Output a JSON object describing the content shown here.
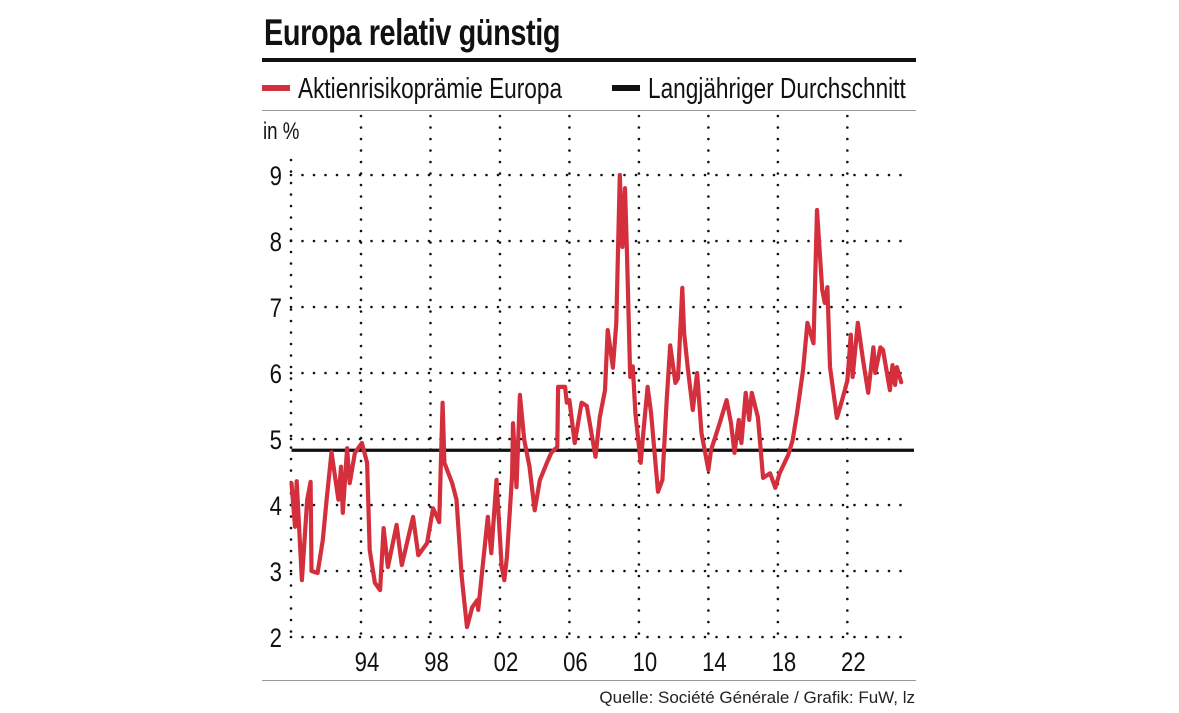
{
  "chart_data": {
    "type": "line",
    "title": "Europa relativ günstig",
    "ylabel": "in %",
    "xlabel": "",
    "ylim": [
      2,
      9
    ],
    "xlim": [
      1990,
      2025.8
    ],
    "yticks": [
      "2",
      "3",
      "4",
      "5",
      "6",
      "7",
      "8",
      "9"
    ],
    "xticks": [
      {
        "year": 1994,
        "label": "94"
      },
      {
        "year": 1998,
        "label": "98"
      },
      {
        "year": 2002,
        "label": "02"
      },
      {
        "year": 2006,
        "label": "06"
      },
      {
        "year": 2010,
        "label": "10"
      },
      {
        "year": 2014,
        "label": "14"
      },
      {
        "year": 2018,
        "label": "18"
      },
      {
        "year": 2022,
        "label": "22"
      }
    ],
    "grid": "dotted",
    "legend_position": "top",
    "series": [
      {
        "name": "Aktienrisikoprämie Europa",
        "color": "#d42f3c",
        "x": [
          1990.0,
          1990.2,
          1990.3,
          1990.6,
          1990.9,
          1991.1,
          1991.15,
          1991.5,
          1991.8,
          1992.0,
          1992.3,
          1992.7,
          1992.85,
          1992.95,
          1993.2,
          1993.35,
          1993.65,
          1994.05,
          1994.35,
          1994.5,
          1994.8,
          1995.1,
          1995.3,
          1995.55,
          1996.05,
          1996.35,
          1997.0,
          1997.3,
          1997.8,
          1998.15,
          1998.5,
          1998.7,
          1998.8,
          1999.25,
          1999.5,
          1999.8,
          2000.1,
          2000.4,
          2000.7,
          2000.75,
          2001.0,
          2001.3,
          2001.5,
          2001.8,
          2002.1,
          2002.25,
          2002.4,
          2002.7,
          2002.75,
          2002.95,
          2003.15,
          2003.4,
          2003.7,
          2004.0,
          2004.3,
          2004.7,
          2004.95,
          2005.3,
          2005.35,
          2005.75,
          2005.85,
          2006.0,
          2006.3,
          2006.7,
          2007.0,
          2007.5,
          2007.75,
          2008.05,
          2008.2,
          2008.5,
          2008.7,
          2008.9,
          2009.05,
          2009.2,
          2009.3,
          2009.5,
          2009.65,
          2009.8,
          2010.1,
          2010.25,
          2010.5,
          2010.7,
          2011.1,
          2011.35,
          2011.6,
          2011.8,
          2012.1,
          2012.25,
          2012.5,
          2012.6,
          2012.8,
          2013.1,
          2013.35,
          2013.6,
          2014.0,
          2014.15,
          2014.65,
          2015.05,
          2015.3,
          2015.5,
          2015.75,
          2015.9,
          2016.15,
          2016.35,
          2016.5,
          2016.85,
          2017.15,
          2017.55,
          2017.85,
          2018.1,
          2018.6,
          2018.85,
          2019.1,
          2019.45,
          2019.7,
          2020.05,
          2020.25,
          2020.55,
          2020.7,
          2020.85,
          2021.0,
          2021.4,
          2021.7,
          2021.85,
          2022.0,
          2022.2,
          2022.3,
          2022.6,
          2022.9,
          2023.2,
          2023.5,
          2023.6,
          2023.9,
          2024.05,
          2024.45,
          2024.6,
          2024.75,
          2024.85,
          2025.1
        ],
        "y": [
          4.33,
          3.67,
          4.36,
          2.86,
          4.08,
          4.35,
          3.0,
          2.97,
          3.47,
          4.03,
          4.8,
          4.08,
          4.58,
          3.88,
          4.86,
          4.33,
          4.79,
          4.94,
          4.64,
          3.32,
          2.82,
          2.71,
          3.65,
          3.06,
          3.7,
          3.09,
          3.82,
          3.24,
          3.42,
          3.95,
          3.74,
          5.55,
          4.64,
          4.33,
          4.08,
          2.91,
          2.15,
          2.45,
          2.56,
          2.41,
          3.06,
          3.82,
          3.27,
          4.38,
          3.06,
          2.86,
          3.21,
          4.45,
          5.24,
          4.27,
          5.67,
          4.98,
          4.58,
          3.92,
          4.38,
          4.64,
          4.79,
          4.88,
          5.79,
          5.79,
          5.55,
          5.59,
          4.94,
          5.55,
          5.5,
          4.73,
          5.33,
          5.74,
          6.65,
          6.08,
          6.76,
          9.0,
          7.91,
          8.8,
          7.91,
          5.94,
          6.1,
          5.39,
          4.64,
          5.09,
          5.79,
          5.39,
          4.2,
          4.38,
          5.59,
          6.42,
          5.85,
          5.92,
          7.29,
          6.61,
          6.1,
          5.44,
          6.0,
          5.09,
          4.53,
          4.83,
          5.24,
          5.59,
          5.24,
          4.79,
          5.29,
          4.94,
          5.7,
          5.29,
          5.7,
          5.33,
          4.41,
          4.48,
          4.26,
          4.48,
          4.76,
          4.98,
          5.39,
          6.05,
          6.76,
          6.45,
          8.47,
          7.26,
          7.06,
          7.3,
          6.09,
          5.32,
          5.59,
          5.74,
          5.89,
          6.58,
          5.94,
          6.76,
          6.2,
          5.7,
          6.39,
          6.0,
          6.39,
          6.35,
          5.74,
          6.12,
          5.82,
          6.09,
          5.86
        ]
      },
      {
        "name": "Langjähriger Durchschnitt",
        "color": "#111111",
        "x": [
          1990.0,
          2025.8
        ],
        "y": [
          4.83,
          4.83
        ]
      }
    ]
  },
  "source": "Quelle: Société Générale / Grafik: FuW, lz"
}
